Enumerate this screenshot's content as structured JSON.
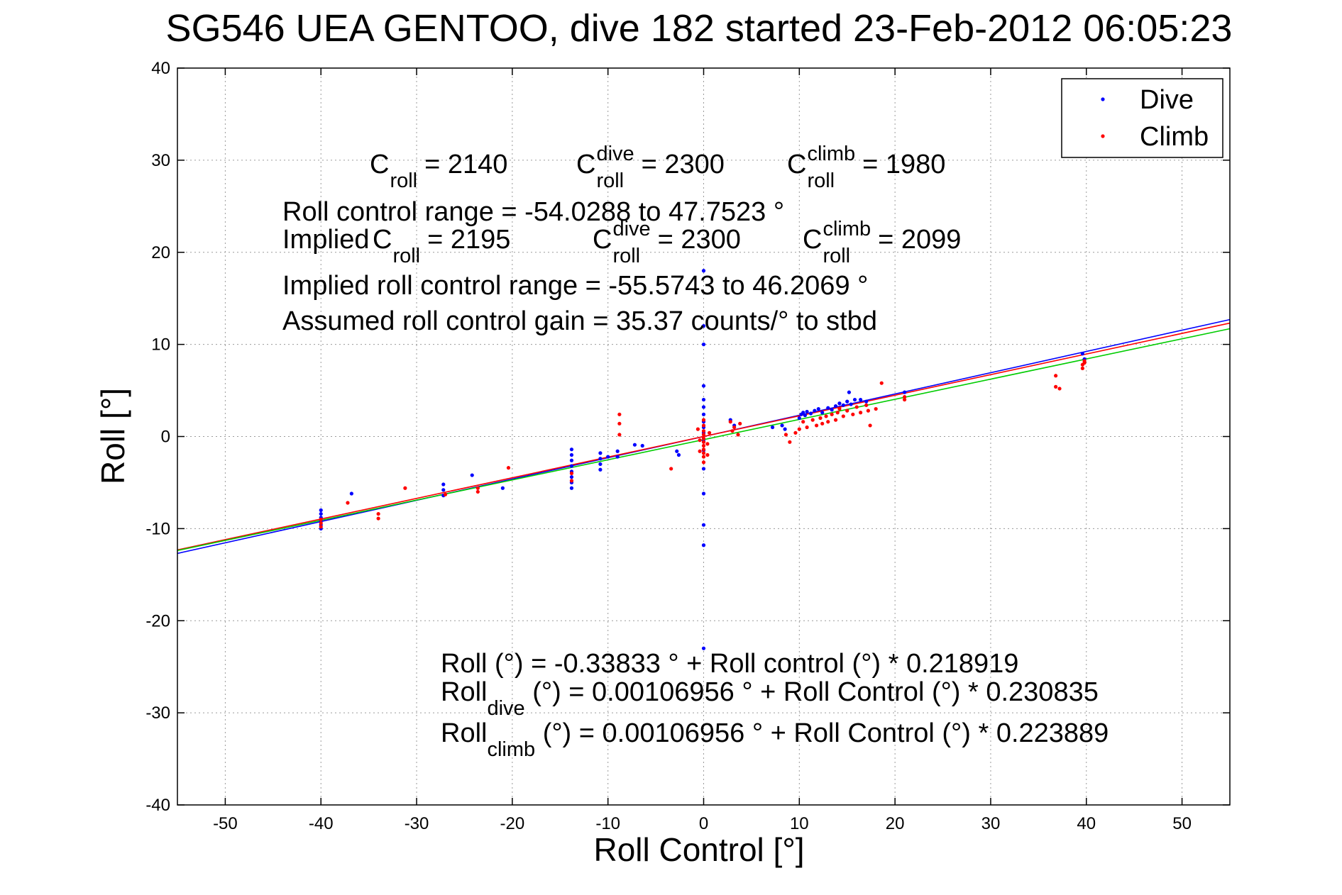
{
  "chart_data": {
    "type": "scatter",
    "title": "SG546 UEA GENTOO, dive 182 started 23-Feb-2012 06:05:23",
    "xlabel": "Roll Control [°]",
    "ylabel": "Roll [°]",
    "xlim": [
      -55,
      55
    ],
    "ylim": [
      -40,
      40
    ],
    "xticks": [
      -50,
      -40,
      -30,
      -20,
      -10,
      0,
      10,
      20,
      30,
      40,
      50
    ],
    "yticks": [
      -40,
      -30,
      -20,
      -10,
      0,
      10,
      20,
      30,
      40
    ],
    "grid": true,
    "legend_position": "top-right",
    "legend": [
      {
        "label": "Dive",
        "color": "#0000ff"
      },
      {
        "label": "Climb",
        "color": "#ff0000"
      }
    ],
    "series": [
      {
        "name": "Dive",
        "color": "#0000ff",
        "points": [
          [
            -40,
            -8.0
          ],
          [
            -40,
            -8.4
          ],
          [
            -40,
            -8.8
          ],
          [
            -40,
            -9.2
          ],
          [
            -40,
            -9.6
          ],
          [
            -40,
            -10.0
          ],
          [
            -36.8,
            -6.2
          ],
          [
            -27.2,
            -5.2
          ],
          [
            -27.2,
            -5.8
          ],
          [
            -27.2,
            -6.4
          ],
          [
            -24.2,
            -4.2
          ],
          [
            -21,
            -5.6
          ],
          [
            -13.8,
            -1.4
          ],
          [
            -13.8,
            -2.0
          ],
          [
            -13.8,
            -2.6
          ],
          [
            -13.8,
            -3.2
          ],
          [
            -13.8,
            -3.8
          ],
          [
            -13.8,
            -4.4
          ],
          [
            -13.8,
            -5.0
          ],
          [
            -13.8,
            -5.6
          ],
          [
            -10.8,
            -1.8
          ],
          [
            -10.8,
            -2.4
          ],
          [
            -10.8,
            -3.0
          ],
          [
            -10.8,
            -3.6
          ],
          [
            -10,
            -2.2
          ],
          [
            -9,
            -1.6
          ],
          [
            -9,
            -2.2
          ],
          [
            -7.2,
            -0.9
          ],
          [
            -6.4,
            -1.0
          ],
          [
            -2.8,
            -1.6
          ],
          [
            -2.6,
            -2.0
          ],
          [
            0,
            18
          ],
          [
            0,
            12
          ],
          [
            0,
            10
          ],
          [
            0,
            5.5
          ],
          [
            0,
            4.0
          ],
          [
            0,
            3.2
          ],
          [
            0,
            2.4
          ],
          [
            0,
            1.6
          ],
          [
            0,
            1.0
          ],
          [
            0,
            0.4
          ],
          [
            0,
            -0.5
          ],
          [
            0,
            -1.5
          ],
          [
            0,
            -3.5
          ],
          [
            0,
            -6.2
          ],
          [
            0,
            -9.6
          ],
          [
            0,
            -11.8
          ],
          [
            0,
            -23
          ],
          [
            2.8,
            1.8
          ],
          [
            3.2,
            1.2
          ],
          [
            7.2,
            1.0
          ],
          [
            8.2,
            1.2
          ],
          [
            8.5,
            0.8
          ],
          [
            10,
            2.0
          ],
          [
            10.2,
            2.4
          ],
          [
            10.4,
            2.6
          ],
          [
            10.6,
            2.3
          ],
          [
            10.8,
            2.7
          ],
          [
            11.2,
            2.5
          ],
          [
            11.6,
            2.8
          ],
          [
            12,
            3.0
          ],
          [
            12.4,
            2.6
          ],
          [
            13,
            3.1
          ],
          [
            13.4,
            2.9
          ],
          [
            13.8,
            3.3
          ],
          [
            14.2,
            3.6
          ],
          [
            14.6,
            3.4
          ],
          [
            15,
            3.8
          ],
          [
            15.2,
            4.8
          ],
          [
            15.4,
            3.5
          ],
          [
            15.8,
            4.0
          ],
          [
            16.4,
            4.0
          ],
          [
            17,
            3.8
          ],
          [
            21,
            4.8
          ],
          [
            39.6,
            9.0
          ],
          [
            39.8,
            8.4
          ]
        ]
      },
      {
        "name": "Climb",
        "color": "#ff0000",
        "points": [
          [
            -40,
            -9.0
          ],
          [
            -40,
            -9.4
          ],
          [
            -40,
            -9.8
          ],
          [
            -37.2,
            -7.2
          ],
          [
            -34,
            -8.4
          ],
          [
            -34,
            -8.9
          ],
          [
            -31.2,
            -5.6
          ],
          [
            -27,
            -6.3
          ],
          [
            -23.6,
            -5.6
          ],
          [
            -23.6,
            -6.0
          ],
          [
            -20.4,
            -3.4
          ],
          [
            -13.8,
            -4.0
          ],
          [
            -13.8,
            -4.8
          ],
          [
            -8.8,
            2.4
          ],
          [
            -8.8,
            1.4
          ],
          [
            -8.8,
            0.2
          ],
          [
            -3.4,
            -3.5
          ],
          [
            0,
            1.8
          ],
          [
            0,
            1.2
          ],
          [
            0,
            0.6
          ],
          [
            0,
            0.2
          ],
          [
            0,
            -0.2
          ],
          [
            0,
            -0.6
          ],
          [
            0,
            -1.0
          ],
          [
            0,
            -1.4
          ],
          [
            0,
            -1.8
          ],
          [
            0,
            -2.2
          ],
          [
            0,
            -2.8
          ],
          [
            -0.4,
            -0.4
          ],
          [
            0.4,
            -0.8
          ],
          [
            -0.4,
            -1.6
          ],
          [
            0.4,
            -2.0
          ],
          [
            -0.6,
            0.8
          ],
          [
            0.6,
            0.4
          ],
          [
            2.8,
            1.6
          ],
          [
            3,
            0.6
          ],
          [
            3.2,
            1.0
          ],
          [
            3.6,
            0.2
          ],
          [
            3.8,
            1.4
          ],
          [
            8.6,
            0.2
          ],
          [
            9,
            -0.6
          ],
          [
            9.6,
            0.4
          ],
          [
            10,
            0.8
          ],
          [
            10.4,
            1.6
          ],
          [
            10.8,
            1.0
          ],
          [
            11.4,
            1.8
          ],
          [
            11.8,
            1.2
          ],
          [
            12.2,
            2.0
          ],
          [
            12.4,
            1.4
          ],
          [
            12.8,
            2.2
          ],
          [
            13,
            1.6
          ],
          [
            13.4,
            2.4
          ],
          [
            13.8,
            1.8
          ],
          [
            14,
            2.6
          ],
          [
            14.2,
            3.0
          ],
          [
            14.6,
            2.2
          ],
          [
            15,
            2.8
          ],
          [
            15.6,
            2.4
          ],
          [
            16,
            3.2
          ],
          [
            16.4,
            2.6
          ],
          [
            17,
            3.4
          ],
          [
            17.2,
            2.8
          ],
          [
            17.4,
            1.2
          ],
          [
            18,
            3.0
          ],
          [
            18.6,
            5.8
          ],
          [
            21,
            4.3
          ],
          [
            21,
            4.0
          ],
          [
            36.8,
            6.6
          ],
          [
            36.8,
            5.4
          ],
          [
            37.2,
            5.2
          ],
          [
            39.6,
            7.4
          ],
          [
            39.6,
            7.8
          ],
          [
            39.8,
            8.0
          ],
          [
            39.8,
            8.2
          ]
        ]
      }
    ],
    "fit_lines": [
      {
        "name": "Dive fit",
        "color": "#0000ff",
        "intercept": 0.00106956,
        "slope": 0.230835
      },
      {
        "name": "Climb fit",
        "color": "#ff0000",
        "intercept": 0.00106956,
        "slope": 0.223889
      },
      {
        "name": "Combined fit",
        "color": "#00cc00",
        "intercept": -0.33833,
        "slope": 0.218919
      }
    ],
    "annotations": {
      "croll_line": [
        {
          "base": "C",
          "sup": "",
          "sub": "roll",
          "value": "= 2140"
        },
        {
          "base": "C",
          "sup": "dive",
          "sub": "roll",
          "value": "= 2300"
        },
        {
          "base": "C",
          "sup": "climb",
          "sub": "roll",
          "value": "= 1980"
        }
      ],
      "roll_control_range": "Roll control range = -54.0288 to 47.7523 °",
      "implied_prefix": "Implied",
      "implied_croll_line": [
        {
          "base": "C",
          "sup": "",
          "sub": "roll",
          "value": "= 2195"
        },
        {
          "base": "C",
          "sup": "dive",
          "sub": "roll",
          "value": "= 2300"
        },
        {
          "base": "C",
          "sup": "climb",
          "sub": "roll",
          "value": "= 2099"
        }
      ],
      "implied_range": "Implied roll control range = -55.5743 to 46.2069 °",
      "gain": "Assumed roll control gain = 35.37 counts/° to stbd",
      "fit_roll": "Roll (°) = -0.33833 ° + Roll control (°) * 0.218919",
      "fit_dive_base": "Roll",
      "fit_dive_sub": "dive",
      "fit_dive_rest": " (°) = 0.00106956 ° + Roll Control (°) * 0.230835",
      "fit_climb_base": "Roll",
      "fit_climb_sub": "climb",
      "fit_climb_rest": " (°) = 0.00106956 ° + Roll Control (°) * 0.223889"
    }
  }
}
